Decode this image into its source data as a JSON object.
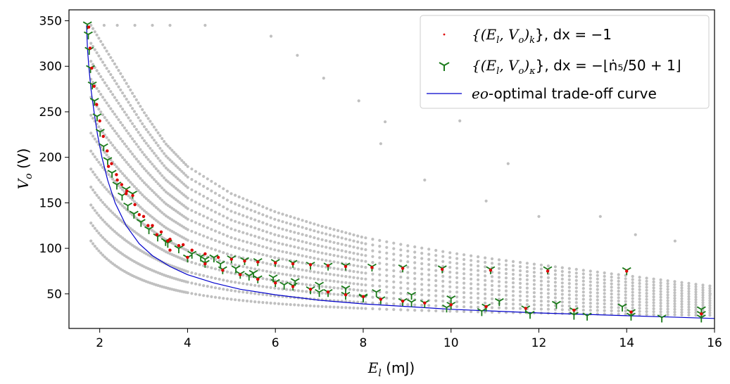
{
  "chart_data": {
    "type": "scatter",
    "xlabel": "E_l (mJ)",
    "ylabel": "V_o (V)",
    "xlim": [
      1.3,
      16
    ],
    "ylim": [
      12,
      362
    ],
    "x_ticks": [
      2,
      4,
      6,
      8,
      10,
      12,
      14,
      16
    ],
    "y_ticks": [
      50,
      100,
      150,
      200,
      250,
      300,
      350
    ],
    "legend_position": "top-right",
    "grid": false,
    "colors": {
      "background_cloud": "#c0c0c0",
      "series_k": "#dd0000",
      "series_kappa": "#1a7a1a",
      "curve": "#0000cc"
    },
    "series": [
      {
        "name": "{(E_l, V_o)_k}, dx = −1",
        "marker": "point",
        "color": "#dd0000",
        "points": [
          [
            1.75,
            343
          ],
          [
            1.78,
            320
          ],
          [
            1.82,
            298
          ],
          [
            1.87,
            278
          ],
          [
            1.93,
            258
          ],
          [
            2.0,
            240
          ],
          [
            2.08,
            223
          ],
          [
            2.17,
            207
          ],
          [
            2.27,
            193
          ],
          [
            2.38,
            181
          ],
          [
            2.5,
            170
          ],
          [
            2.62,
            163
          ],
          [
            2.75,
            158
          ],
          [
            2.9,
            137
          ],
          [
            3.1,
            125
          ],
          [
            3.3,
            115
          ],
          [
            3.55,
            108
          ],
          [
            3.8,
            103
          ],
          [
            4.1,
            98
          ],
          [
            4.4,
            94
          ],
          [
            4.7,
            90
          ],
          [
            5.0,
            88
          ],
          [
            5.3,
            86
          ],
          [
            5.6,
            85
          ],
          [
            6.0,
            84
          ],
          [
            6.4,
            83
          ],
          [
            6.8,
            82
          ],
          [
            7.2,
            81
          ],
          [
            7.6,
            80
          ],
          [
            8.2,
            79
          ],
          [
            8.9,
            78
          ],
          [
            9.8,
            77
          ],
          [
            10.9,
            76
          ],
          [
            12.2,
            75
          ],
          [
            14.0,
            75
          ],
          [
            3.6,
            98
          ],
          [
            4.0,
            90
          ],
          [
            4.4,
            83
          ],
          [
            4.8,
            76
          ],
          [
            5.2,
            71
          ],
          [
            5.6,
            66
          ],
          [
            6.0,
            62
          ],
          [
            6.4,
            58
          ],
          [
            6.8,
            55
          ],
          [
            7.2,
            52
          ],
          [
            7.6,
            49
          ],
          [
            8.0,
            47
          ],
          [
            8.4,
            44
          ],
          [
            8.9,
            42
          ],
          [
            9.4,
            40
          ],
          [
            10.0,
            38
          ],
          [
            10.8,
            36
          ],
          [
            11.7,
            34
          ],
          [
            12.8,
            32
          ],
          [
            14.1,
            30
          ],
          [
            15.7,
            28
          ],
          [
            2.2,
            190
          ],
          [
            2.4,
            175
          ],
          [
            2.6,
            160
          ],
          [
            2.8,
            148
          ],
          [
            3.0,
            135
          ],
          [
            3.2,
            125
          ],
          [
            3.4,
            118
          ],
          [
            3.6,
            110
          ],
          [
            3.9,
            104
          ]
        ]
      },
      {
        "name": "{(E_l, V_o)_κ}, dx = −⌊ṅ₅/50+1⌋",
        "marker": "tri_down",
        "color": "#1a7a1a",
        "points": [
          [
            1.72,
            346
          ],
          [
            1.74,
            335
          ],
          [
            1.76,
            318
          ],
          [
            1.79,
            298
          ],
          [
            1.83,
            280
          ],
          [
            1.88,
            262
          ],
          [
            1.94,
            245
          ],
          [
            2.01,
            228
          ],
          [
            2.09,
            212
          ],
          [
            2.18,
            197
          ],
          [
            2.28,
            183
          ],
          [
            2.39,
            170
          ],
          [
            2.51,
            158
          ],
          [
            2.64,
            147
          ],
          [
            2.78,
            138
          ],
          [
            2.94,
            129
          ],
          [
            3.12,
            121
          ],
          [
            3.32,
            113
          ],
          [
            3.55,
            106
          ],
          [
            3.8,
            100
          ],
          [
            4.1,
            94
          ],
          [
            4.4,
            88
          ],
          [
            4.75,
            83
          ],
          [
            5.1,
            78
          ],
          [
            5.5,
            73
          ],
          [
            5.95,
            68
          ],
          [
            6.45,
            64
          ],
          [
            7.0,
            60
          ],
          [
            7.6,
            56
          ],
          [
            8.3,
            52
          ],
          [
            9.1,
            49
          ],
          [
            10.0,
            45
          ],
          [
            11.1,
            42
          ],
          [
            12.4,
            39
          ],
          [
            13.9,
            36
          ],
          [
            15.7,
            33
          ],
          [
            2.6,
            165
          ],
          [
            2.75,
            160
          ],
          [
            3.5,
            108
          ],
          [
            4.3,
            91
          ],
          [
            4.6,
            90
          ],
          [
            5.0,
            89
          ],
          [
            5.3,
            87
          ],
          [
            5.6,
            86
          ],
          [
            6.0,
            85
          ],
          [
            6.4,
            84
          ],
          [
            6.8,
            82
          ],
          [
            7.2,
            81
          ],
          [
            7.6,
            81
          ],
          [
            8.2,
            80
          ],
          [
            8.9,
            79
          ],
          [
            9.8,
            78
          ],
          [
            10.9,
            77
          ],
          [
            12.2,
            77
          ],
          [
            14.0,
            76
          ],
          [
            4.0,
            90
          ],
          [
            4.4,
            84
          ],
          [
            4.8,
            77
          ],
          [
            5.2,
            72
          ],
          [
            5.6,
            67
          ],
          [
            6.0,
            63
          ],
          [
            6.4,
            59
          ],
          [
            6.8,
            55
          ],
          [
            7.2,
            52
          ],
          [
            7.6,
            49
          ],
          [
            8.0,
            47
          ],
          [
            8.4,
            44
          ],
          [
            8.9,
            42
          ],
          [
            9.4,
            40
          ],
          [
            10.0,
            38
          ],
          [
            10.8,
            36
          ],
          [
            11.7,
            34
          ],
          [
            12.8,
            32
          ],
          [
            14.1,
            30
          ],
          [
            15.7,
            28
          ],
          [
            5.4,
            70
          ],
          [
            6.2,
            60
          ],
          [
            7.0,
            52
          ],
          [
            8.0,
            46
          ],
          [
            9.1,
            41
          ],
          [
            9.9,
            35
          ],
          [
            10.7,
            31
          ],
          [
            11.8,
            28
          ],
          [
            12.8,
            27
          ],
          [
            13.1,
            26
          ],
          [
            14.1,
            26
          ],
          [
            14.8,
            24
          ],
          [
            15.7,
            24
          ]
        ]
      },
      {
        "name": "eo-optimal trade-off curve",
        "marker": "line",
        "color": "#0000cc",
        "points": [
          [
            1.7,
            345
          ],
          [
            1.72,
            320
          ],
          [
            1.75,
            300
          ],
          [
            1.8,
            275
          ],
          [
            1.87,
            250
          ],
          [
            1.95,
            225
          ],
          [
            2.05,
            200
          ],
          [
            2.18,
            175
          ],
          [
            2.35,
            150
          ],
          [
            2.6,
            125
          ],
          [
            2.9,
            105
          ],
          [
            3.2,
            92
          ],
          [
            3.6,
            80
          ],
          [
            4.0,
            71
          ],
          [
            4.6,
            62
          ],
          [
            5.2,
            55
          ],
          [
            6.0,
            49
          ],
          [
            7.0,
            43
          ],
          [
            8.0,
            39
          ],
          [
            9.0,
            36
          ],
          [
            10.0,
            33
          ],
          [
            11.0,
            31
          ],
          [
            12.0,
            29
          ],
          [
            13.0,
            27.5
          ],
          [
            14.0,
            26
          ],
          [
            15.0,
            24.5
          ],
          [
            16.0,
            23
          ]
        ]
      }
    ]
  },
  "labels": {
    "x_axis": {
      "main": "E",
      "sub": "l",
      "unit": " (mJ)"
    },
    "y_axis": {
      "main": "V",
      "sub": "o",
      "unit": " (V)"
    },
    "legend": [
      {
        "math": "{(E",
        "sub1": "l",
        "mid": ", V",
        "sub2": "o",
        "close": ")",
        "sub3": "k",
        "tail": "}, dx = −1"
      },
      {
        "math": "{(E",
        "sub1": "l",
        "mid": ", V",
        "sub2": "o",
        "close": ")",
        "sub3": "κ",
        "tail": "}, dx = −⌊ṅ₅/50 + 1⌋"
      },
      {
        "em": "eo",
        "rest": "-optimal trade-off curve"
      }
    ]
  }
}
